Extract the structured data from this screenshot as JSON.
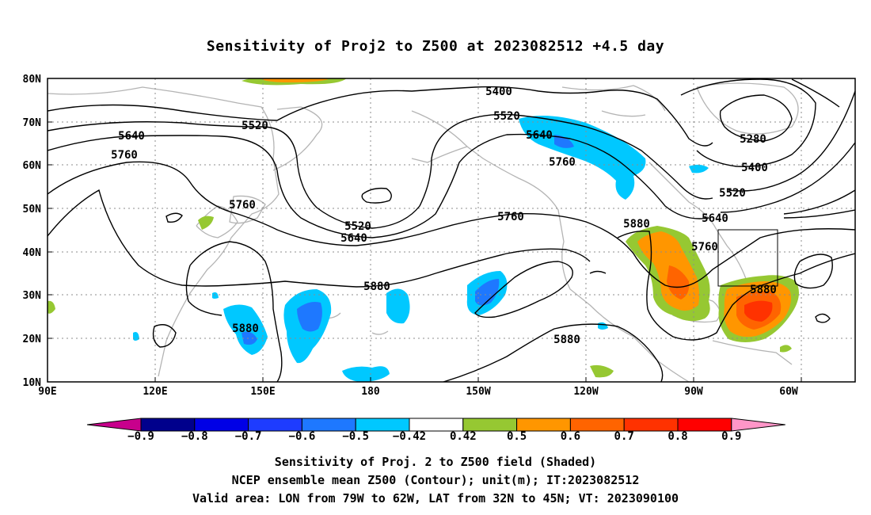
{
  "title": "Sensitivity of Proj2 to Z500 at 2023082512 +4.5 day",
  "lat_labels": [
    "80N",
    "70N",
    "60N",
    "50N",
    "40N",
    "30N",
    "20N",
    "10N"
  ],
  "lon_labels": [
    "90E",
    "120E",
    "150E",
    "180",
    "150W",
    "120W",
    "90W",
    "60W"
  ],
  "contour_labels": [
    "5400",
    "5520",
    "5640",
    "5760",
    "5880",
    "5280"
  ],
  "colorbar": {
    "labels": [
      "-0.9",
      "-0.8",
      "-0.7",
      "-0.6",
      "-0.5",
      "-0.42",
      "0.42",
      "0.5",
      "0.6",
      "0.7",
      "0.8",
      "0.9"
    ],
    "colors": [
      "#c8008c",
      "#00008c",
      "#0000e6",
      "#1e3cff",
      "#1e78ff",
      "#00c8ff",
      "#ffffff",
      "#96c832",
      "#ff9600",
      "#ff6400",
      "#ff3200",
      "#ff0000",
      "#ff96c8"
    ]
  },
  "footer": {
    "line1": "Sensitivity of Proj. 2 to Z500 field (Shaded)",
    "line2": "NCEP ensemble mean Z500 (Contour); unit(m); IT:2023082512",
    "line3": "Valid area: LON from 79W to 62W, LAT from 32N to 45N; VT: 2023090100"
  },
  "valid_area": {
    "lon_min": -79,
    "lon_max": -62,
    "lat_min": 32,
    "lat_max": 45
  }
}
